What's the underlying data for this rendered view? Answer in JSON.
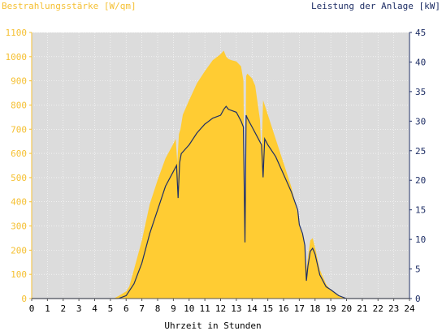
{
  "chart_data": {
    "type": "area",
    "left_axis_title": "Bestrahlungsstärke [W/qm]",
    "right_axis_title": "Leistung der Anlage [kW]",
    "xlabel": "Uhrzeit in Stunden",
    "xlim": [
      0,
      24
    ],
    "ylim_left": [
      0,
      1100
    ],
    "ylim_right": [
      0,
      45
    ],
    "x_ticks": [
      "0",
      "1",
      "2",
      "3",
      "4",
      "5",
      "6",
      "7",
      "8",
      "9",
      "10",
      "11",
      "12",
      "13",
      "14",
      "15",
      "16",
      "17",
      "18",
      "19",
      "20",
      "21",
      "22",
      "23",
      "24"
    ],
    "y_left_ticks": [
      "0",
      "100",
      "200",
      "300",
      "400",
      "500",
      "600",
      "700",
      "800",
      "900",
      "1000",
      "1100"
    ],
    "y_right_ticks": [
      "0",
      "5",
      "10",
      "15",
      "20",
      "25",
      "30",
      "35",
      "40",
      "45"
    ],
    "grid": true,
    "colors": {
      "plot_background": "#dcdcdc",
      "irradiance": "#ffcc33",
      "power": "#1f2f66",
      "left_axis": "#f5c033",
      "right_axis": "#1f2f66"
    },
    "series": [
      {
        "axis": "left",
        "x": [
          0,
          5.2,
          5.5,
          6.0,
          6.2,
          6.5,
          7.0,
          7.5,
          8.0,
          8.5,
          9.0,
          9.15,
          9.25,
          9.35,
          9.45,
          9.6,
          10.0,
          10.5,
          11.0,
          11.5,
          12.0,
          12.2,
          12.35,
          12.5,
          12.7,
          13.0,
          13.3,
          13.45,
          13.55,
          13.62,
          13.7,
          14.0,
          14.2,
          14.5,
          14.6,
          14.7,
          14.8,
          15.0,
          15.5,
          16.0,
          16.5,
          16.9,
          17.0,
          17.2,
          17.35,
          17.45,
          17.55,
          17.7,
          17.85,
          18.0,
          18.3,
          18.7,
          19.0,
          19.5,
          20.0,
          24
        ],
        "y": [
          0,
          0,
          10,
          30,
          50,
          120,
          240,
          390,
          490,
          580,
          640,
          660,
          560,
          680,
          700,
          760,
          820,
          890,
          940,
          985,
          1010,
          1025,
          1000,
          990,
          985,
          980,
          960,
          900,
          230,
          920,
          930,
          910,
          880,
          740,
          590,
          820,
          800,
          760,
          660,
          560,
          460,
          350,
          300,
          260,
          220,
          120,
          170,
          240,
          250,
          210,
          120,
          60,
          35,
          10,
          0,
          0
        ]
      },
      {
        "axis": "right",
        "x": [
          0,
          5.5,
          6.0,
          6.5,
          7.0,
          7.5,
          8.0,
          8.5,
          9.0,
          9.2,
          9.3,
          9.4,
          9.5,
          10.0,
          10.5,
          11.0,
          11.5,
          12.0,
          12.2,
          12.35,
          12.5,
          13.0,
          13.3,
          13.45,
          13.55,
          13.62,
          13.7,
          14.0,
          14.4,
          14.6,
          14.7,
          14.8,
          15.0,
          15.5,
          16.0,
          16.5,
          16.9,
          17.0,
          17.2,
          17.35,
          17.45,
          17.55,
          17.7,
          17.85,
          18.0,
          18.3,
          18.7,
          19.0,
          19.5,
          20.0,
          24
        ],
        "y": [
          0,
          0,
          0.5,
          2.5,
          6,
          11,
          15,
          19,
          21.5,
          22.5,
          17,
          23,
          24.5,
          26,
          28,
          29.5,
          30.5,
          31,
          32,
          32.5,
          32,
          31.5,
          30,
          29,
          9.5,
          31,
          30.5,
          29,
          27,
          26,
          20.5,
          27,
          26,
          24,
          21,
          18,
          15,
          12.5,
          11,
          9,
          3,
          5.5,
          8,
          8.5,
          7.5,
          4,
          2,
          1.5,
          0.5,
          0,
          0
        ]
      }
    ]
  }
}
